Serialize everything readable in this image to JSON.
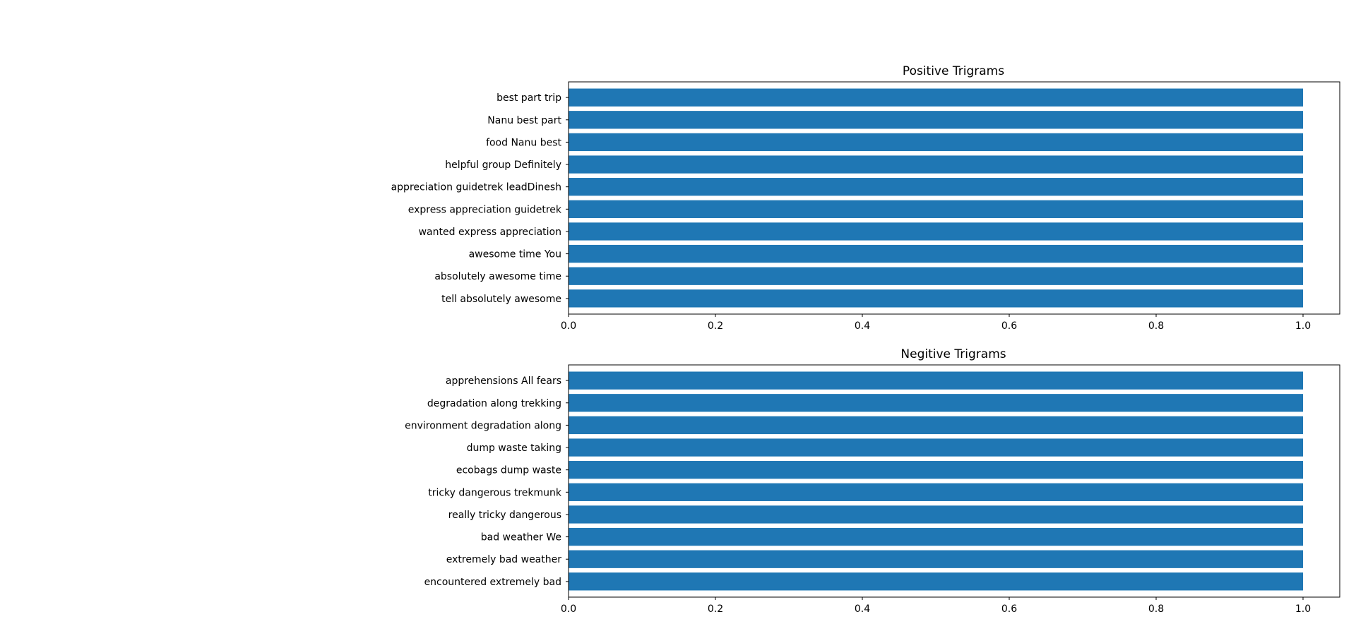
{
  "chart_data": [
    {
      "type": "bar",
      "orientation": "horizontal",
      "title": "Positive Trigrams",
      "categories": [
        "tell absolutely awesome",
        "absolutely awesome time",
        "awesome time You",
        "wanted express appreciation",
        "express appreciation guidetrek",
        "appreciation guidetrek leadDinesh",
        "helpful group Definitely",
        "food Nanu best",
        "Nanu best part",
        "best part trip"
      ],
      "values": [
        1.0,
        1.0,
        1.0,
        1.0,
        1.0,
        1.0,
        1.0,
        1.0,
        1.0,
        1.0
      ],
      "xlim": [
        0,
        1.05
      ],
      "xticks": [
        "0.0",
        "0.2",
        "0.4",
        "0.6",
        "0.8",
        "1.0"
      ],
      "xlabel": "",
      "ylabel": "",
      "bar_color": "#1f77b4",
      "grid": false
    },
    {
      "type": "bar",
      "orientation": "horizontal",
      "title": "Negitive Trigrams",
      "categories": [
        "encountered extremely bad",
        "extremely bad weather",
        "bad weather We",
        "really tricky dangerous",
        "tricky dangerous trekmunk",
        "ecobags dump waste",
        "dump waste taking",
        "environment degradation along",
        "degradation along trekking",
        "apprehensions All fears"
      ],
      "values": [
        1.0,
        1.0,
        1.0,
        1.0,
        1.0,
        1.0,
        1.0,
        1.0,
        1.0,
        1.0
      ],
      "xlim": [
        0,
        1.05
      ],
      "xticks": [
        "0.0",
        "0.2",
        "0.4",
        "0.6",
        "0.8",
        "1.0"
      ],
      "xlabel": "",
      "ylabel": "",
      "bar_color": "#1f77b4",
      "grid": false
    }
  ]
}
